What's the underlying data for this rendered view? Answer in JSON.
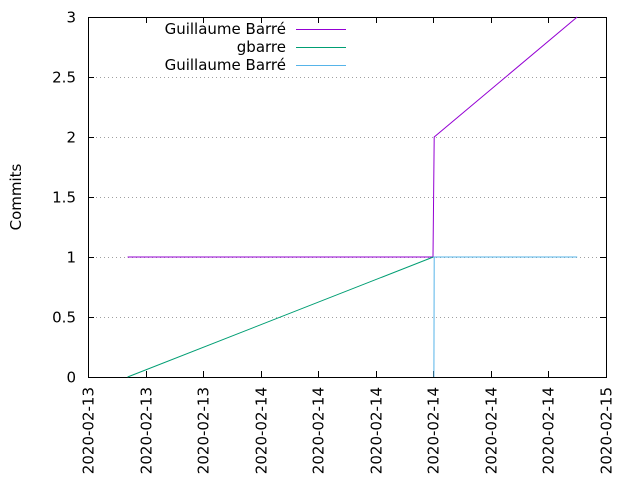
{
  "chart_data": {
    "type": "line",
    "title": "",
    "xlabel": "",
    "ylabel": "Commits",
    "ylim": [
      0,
      3
    ],
    "xlim": [
      "2020-02-13T00:00",
      "2020-02-15T00:00"
    ],
    "yticks": [
      "0",
      "0.5",
      "1",
      "1.5",
      "2",
      "2.5",
      "3"
    ],
    "xticks": [
      "2020-02-13",
      "2020-02-13",
      "2020-02-13",
      "2020-02-14",
      "2020-02-14",
      "2020-02-14",
      "2020-02-14",
      "2020-02-14",
      "2020-02-14",
      "2020-02-15"
    ],
    "grid": {
      "y": true,
      "x": false,
      "style": "dotted"
    },
    "legend": "top-left",
    "series": [
      {
        "name": "Guillaume Barré",
        "color": "#9400d3",
        "points": [
          {
            "x": "2020-02-13T03:40",
            "y": 1
          },
          {
            "x": "2020-02-14T07:58",
            "y": 1
          },
          {
            "x": "2020-02-14T08:05",
            "y": 2
          },
          {
            "x": "2020-02-14T21:20",
            "y": 3
          }
        ]
      },
      {
        "name": "gbarre",
        "color": "#009e73",
        "points": [
          {
            "x": "2020-02-13T03:40",
            "y": 0
          },
          {
            "x": "2020-02-14T08:00",
            "y": 1
          }
        ]
      },
      {
        "name": "Guillaume Barré",
        "color": "#56b4e9",
        "points": [
          {
            "x": "2020-02-14T08:03",
            "y": 0
          },
          {
            "x": "2020-02-14T08:05",
            "y": 1
          },
          {
            "x": "2020-02-14T21:20",
            "y": 1
          }
        ]
      }
    ]
  }
}
